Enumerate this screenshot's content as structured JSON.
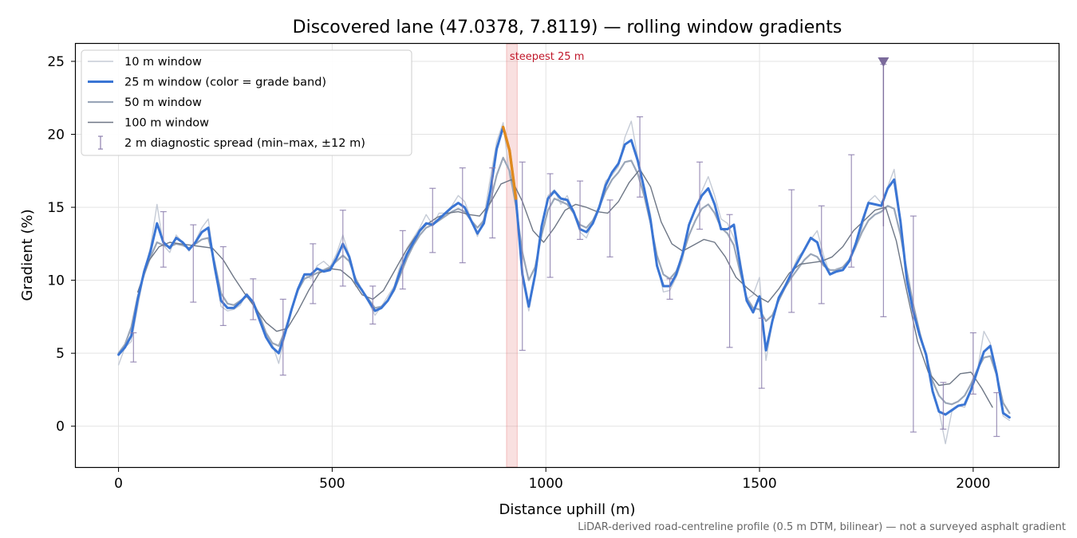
{
  "chart_data": {
    "type": "line",
    "title": "Discovered lane (47.0378, 7.8119) — rolling window gradients",
    "xlabel": "Distance uphill (m)",
    "ylabel": "Gradient (%)",
    "xlim": [
      -100,
      2200
    ],
    "ylim": [
      -2.8,
      26.2
    ],
    "xticks": [
      0,
      500,
      1000,
      1500,
      2000
    ],
    "yticks": [
      0,
      5,
      10,
      15,
      20,
      25
    ],
    "grid": true,
    "legend_position": "top-left",
    "footnote": "LiDAR-derived road-centreline profile (0.5 m DTM, bilinear) — not a surveyed asphalt gradient",
    "highlight": {
      "label": "steepest 25 m",
      "x_start": 908,
      "x_end": 933,
      "color": "#e57373"
    },
    "marker": {
      "x": 1790,
      "y": 25,
      "color": "#7b6a9b"
    },
    "series": [
      {
        "name": "10 m window",
        "color": "#c5cbd6",
        "x": [
          0,
          15,
          30,
          45,
          60,
          75,
          90,
          105,
          120,
          135,
          150,
          165,
          180,
          195,
          210,
          225,
          240,
          255,
          270,
          285,
          300,
          315,
          330,
          345,
          360,
          375,
          390,
          405,
          420,
          435,
          450,
          465,
          480,
          495,
          510,
          525,
          540,
          555,
          570,
          585,
          600,
          615,
          630,
          645,
          660,
          675,
          690,
          705,
          720,
          735,
          750,
          765,
          780,
          795,
          810,
          825,
          840,
          855,
          870,
          885,
          900,
          915,
          930,
          945,
          960,
          975,
          990,
          1005,
          1020,
          1035,
          1050,
          1065,
          1080,
          1095,
          1110,
          1125,
          1140,
          1155,
          1170,
          1185,
          1200,
          1215,
          1230,
          1245,
          1260,
          1275,
          1290,
          1305,
          1320,
          1335,
          1350,
          1365,
          1380,
          1395,
          1410,
          1425,
          1440,
          1455,
          1470,
          1485,
          1500,
          1515,
          1530,
          1545,
          1560,
          1575,
          1590,
          1605,
          1620,
          1635,
          1650,
          1665,
          1680,
          1695,
          1710,
          1725,
          1740,
          1755,
          1770,
          1785,
          1800,
          1815,
          1830,
          1845,
          1860,
          1875,
          1890,
          1905,
          1920,
          1935,
          1950,
          1965,
          1980,
          1995,
          2010,
          2025,
          2040,
          2055,
          2070,
          2085
        ],
        "y": [
          4.2,
          5.4,
          5.8,
          8.2,
          10.5,
          12.3,
          15.2,
          12.4,
          11.9,
          13.1,
          12.6,
          12.0,
          12.7,
          13.6,
          14.2,
          10.8,
          8.2,
          7.9,
          8.0,
          8.3,
          9.1,
          8.4,
          7.2,
          6.3,
          5.6,
          4.3,
          6.3,
          8.1,
          9.4,
          10.4,
          10.1,
          11.0,
          11.3,
          10.9,
          11.8,
          13.1,
          11.7,
          9.6,
          9.4,
          8.5,
          7.6,
          8.2,
          8.9,
          9.6,
          11.1,
          12.2,
          12.9,
          13.6,
          14.5,
          13.8,
          14.6,
          14.6,
          15.1,
          15.8,
          15.4,
          14.2,
          13.0,
          14.3,
          17.0,
          19.5,
          20.8,
          17.1,
          15.4,
          10.1,
          7.9,
          10.3,
          13.8,
          15.8,
          16.2,
          15.2,
          15.8,
          14.6,
          13.3,
          12.9,
          14.0,
          15.2,
          16.8,
          17.2,
          17.8,
          19.8,
          20.9,
          18.4,
          16.3,
          14.5,
          11.2,
          9.2,
          9.3,
          10.2,
          11.4,
          13.9,
          14.8,
          16.1,
          17.1,
          15.8,
          14.2,
          13.9,
          12.9,
          11.4,
          8.7,
          9.0,
          10.2,
          4.5,
          7.1,
          8.8,
          9.5,
          10.6,
          11.6,
          12.1,
          12.8,
          13.4,
          11.7,
          10.4,
          10.8,
          10.9,
          11.3,
          12.2,
          13.6,
          15.4,
          15.8,
          15.3,
          16.4,
          17.6,
          14.2,
          9.7,
          7.9,
          6.1,
          4.8,
          2.5,
          1.1,
          -1.2,
          1.0,
          1.4,
          1.3,
          2.4,
          3.8,
          6.5,
          5.7,
          3.4,
          0.7,
          0.4
        ]
      },
      {
        "name": "25 m window (color = grade band)",
        "color": "#3a75d4",
        "steep_color": "#e08a1e",
        "x": [
          0,
          15,
          30,
          45,
          60,
          75,
          90,
          105,
          120,
          135,
          150,
          165,
          180,
          195,
          210,
          225,
          240,
          255,
          270,
          285,
          300,
          315,
          330,
          345,
          360,
          375,
          390,
          405,
          420,
          435,
          450,
          465,
          480,
          495,
          510,
          525,
          540,
          555,
          570,
          585,
          600,
          615,
          630,
          645,
          660,
          675,
          690,
          705,
          720,
          735,
          750,
          765,
          780,
          795,
          810,
          825,
          840,
          855,
          870,
          885,
          900,
          915,
          930,
          945,
          960,
          975,
          990,
          1005,
          1020,
          1035,
          1050,
          1065,
          1080,
          1095,
          1110,
          1125,
          1140,
          1155,
          1170,
          1185,
          1200,
          1215,
          1230,
          1245,
          1260,
          1275,
          1290,
          1305,
          1320,
          1335,
          1350,
          1365,
          1380,
          1395,
          1410,
          1425,
          1440,
          1455,
          1470,
          1485,
          1500,
          1515,
          1530,
          1545,
          1560,
          1575,
          1590,
          1605,
          1620,
          1635,
          1650,
          1665,
          1680,
          1695,
          1710,
          1725,
          1740,
          1755,
          1770,
          1785,
          1800,
          1815,
          1830,
          1845,
          1860,
          1875,
          1890,
          1905,
          1920,
          1935,
          1950,
          1965,
          1980,
          1995,
          2010,
          2025,
          2040,
          2055,
          2070,
          2085
        ],
        "y": [
          4.9,
          5.4,
          6.2,
          8.7,
          10.6,
          12.0,
          13.9,
          12.6,
          12.2,
          12.9,
          12.6,
          12.1,
          12.6,
          13.3,
          13.6,
          10.9,
          8.6,
          8.1,
          8.1,
          8.5,
          9.0,
          8.5,
          7.3,
          6.1,
          5.4,
          5.0,
          6.4,
          8.0,
          9.4,
          10.4,
          10.4,
          10.8,
          10.6,
          10.7,
          11.5,
          12.5,
          11.6,
          9.9,
          9.3,
          8.6,
          7.9,
          8.1,
          8.6,
          9.4,
          10.7,
          11.8,
          12.6,
          13.4,
          13.9,
          13.8,
          14.2,
          14.6,
          15.0,
          15.3,
          15.0,
          14.1,
          13.2,
          13.9,
          16.1,
          19.0,
          20.5,
          18.9,
          15.6,
          10.4,
          8.2,
          10.4,
          13.7,
          15.6,
          16.1,
          15.6,
          15.5,
          14.7,
          13.5,
          13.3,
          13.9,
          15.0,
          16.5,
          17.4,
          18.0,
          19.3,
          19.6,
          18.2,
          16.3,
          14.1,
          11.0,
          9.6,
          9.6,
          10.4,
          11.8,
          13.8,
          14.9,
          15.8,
          16.3,
          15.2,
          13.5,
          13.5,
          13.8,
          11.0,
          8.6,
          7.8,
          8.9,
          5.2,
          7.2,
          8.8,
          9.6,
          10.5,
          11.3,
          12.1,
          12.9,
          12.6,
          11.2,
          10.4,
          10.6,
          10.7,
          11.3,
          12.5,
          14.0,
          15.3,
          15.2,
          15.1,
          16.3,
          16.9,
          14.0,
          10.0,
          7.8,
          6.2,
          4.9,
          2.4,
          1.0,
          0.8,
          1.1,
          1.4,
          1.5,
          2.5,
          3.8,
          5.1,
          5.5,
          3.6,
          0.9,
          0.6
        ]
      },
      {
        "name": "50 m window",
        "color": "#9aa6b8",
        "x": [
          0,
          15,
          30,
          45,
          60,
          75,
          90,
          105,
          120,
          135,
          150,
          165,
          180,
          195,
          210,
          225,
          240,
          255,
          270,
          285,
          300,
          315,
          330,
          345,
          360,
          375,
          390,
          405,
          420,
          435,
          450,
          465,
          480,
          495,
          510,
          525,
          540,
          555,
          570,
          585,
          600,
          615,
          630,
          645,
          660,
          675,
          690,
          705,
          720,
          735,
          750,
          765,
          780,
          795,
          810,
          825,
          840,
          855,
          870,
          885,
          900,
          915,
          930,
          945,
          960,
          975,
          990,
          1005,
          1020,
          1035,
          1050,
          1065,
          1080,
          1095,
          1110,
          1125,
          1140,
          1155,
          1170,
          1185,
          1200,
          1215,
          1230,
          1245,
          1260,
          1275,
          1290,
          1305,
          1320,
          1335,
          1350,
          1365,
          1380,
          1395,
          1410,
          1425,
          1440,
          1455,
          1470,
          1485,
          1500,
          1515,
          1530,
          1545,
          1560,
          1575,
          1590,
          1605,
          1620,
          1635,
          1650,
          1665,
          1680,
          1695,
          1710,
          1725,
          1740,
          1755,
          1770,
          1785,
          1800,
          1815,
          1830,
          1845,
          1860,
          1875,
          1890,
          1905,
          1920,
          1935,
          1950,
          1965,
          1980,
          1995,
          2010,
          2025,
          2040,
          2055,
          2070,
          2085
        ],
        "y": [
          5.0,
          5.6,
          6.8,
          8.9,
          10.4,
          11.6,
          12.6,
          12.4,
          12.3,
          12.5,
          12.4,
          12.2,
          12.5,
          12.8,
          12.9,
          11.2,
          9.1,
          8.4,
          8.3,
          8.6,
          8.9,
          8.5,
          7.6,
          6.4,
          5.7,
          5.5,
          6.6,
          8.0,
          9.3,
          10.1,
          10.3,
          10.5,
          10.7,
          10.9,
          11.3,
          11.7,
          11.3,
          10.1,
          9.3,
          8.7,
          8.1,
          8.2,
          8.6,
          9.3,
          10.4,
          11.5,
          12.4,
          13.1,
          13.6,
          13.8,
          14.1,
          14.4,
          14.7,
          14.9,
          14.7,
          14.1,
          13.6,
          14.1,
          15.4,
          17.2,
          18.4,
          17.5,
          15.1,
          11.9,
          10.0,
          10.9,
          13.1,
          14.8,
          15.6,
          15.4,
          15.2,
          14.6,
          13.8,
          13.6,
          14.1,
          15.0,
          16.1,
          16.9,
          17.4,
          18.1,
          18.2,
          17.3,
          15.8,
          13.9,
          11.7,
          10.4,
          10.1,
          10.6,
          11.7,
          13.1,
          14.1,
          14.9,
          15.2,
          14.6,
          13.6,
          13.2,
          12.4,
          10.5,
          8.8,
          8.1,
          8.0,
          7.2,
          7.6,
          8.6,
          9.5,
          10.2,
          10.8,
          11.4,
          11.8,
          11.6,
          11.0,
          10.7,
          10.7,
          10.9,
          11.4,
          12.3,
          13.3,
          14.1,
          14.5,
          14.7,
          15.1,
          14.9,
          13.1,
          10.6,
          8.3,
          6.4,
          4.8,
          3.1,
          2.1,
          1.6,
          1.5,
          1.7,
          2.1,
          2.9,
          3.9,
          4.7,
          4.8,
          3.5,
          1.6,
          0.9
        ]
      },
      {
        "name": "100 m window",
        "color": "#6e7786",
        "x": [
          45,
          70,
          95,
          120,
          145,
          170,
          195,
          220,
          245,
          270,
          295,
          320,
          345,
          370,
          395,
          420,
          445,
          470,
          495,
          520,
          545,
          570,
          595,
          620,
          645,
          670,
          695,
          720,
          745,
          770,
          795,
          820,
          845,
          870,
          895,
          920,
          945,
          970,
          995,
          1020,
          1045,
          1070,
          1095,
          1120,
          1145,
          1170,
          1195,
          1220,
          1245,
          1270,
          1295,
          1320,
          1345,
          1370,
          1395,
          1420,
          1445,
          1470,
          1495,
          1520,
          1545,
          1570,
          1595,
          1620,
          1645,
          1670,
          1695,
          1720,
          1745,
          1770,
          1795,
          1820,
          1845,
          1870,
          1895,
          1920,
          1945,
          1970,
          1995,
          2020,
          2045
        ],
        "y": [
          9.2,
          11.3,
          12.3,
          12.6,
          12.5,
          12.4,
          12.3,
          12.2,
          11.4,
          10.2,
          9.1,
          8.1,
          7.1,
          6.5,
          6.7,
          7.9,
          9.3,
          10.5,
          10.8,
          10.7,
          10.1,
          9.0,
          8.7,
          9.3,
          10.6,
          11.9,
          13.0,
          13.8,
          14.3,
          14.6,
          14.7,
          14.5,
          14.4,
          15.3,
          16.6,
          16.9,
          15.4,
          13.4,
          12.6,
          13.6,
          14.8,
          15.2,
          15.0,
          14.7,
          14.6,
          15.4,
          16.7,
          17.6,
          16.4,
          14.0,
          12.5,
          12.0,
          12.4,
          12.8,
          12.6,
          11.6,
          10.2,
          9.5,
          8.9,
          8.5,
          9.4,
          10.5,
          11.1,
          11.2,
          11.3,
          11.6,
          12.3,
          13.4,
          14.1,
          14.8,
          15.0,
          12.7,
          9.2,
          5.8,
          3.7,
          2.8,
          2.9,
          3.6,
          3.7,
          2.6,
          1.3
        ]
      }
    ],
    "diagnostic_spread": {
      "name": "2 m diagnostic spread (min–max, ±12 m)",
      "color": "#8d7fae",
      "x": [
        35,
        105,
        175,
        245,
        315,
        385,
        455,
        525,
        595,
        665,
        735,
        805,
        875,
        945,
        1010,
        1080,
        1150,
        1220,
        1290,
        1360,
        1430,
        1505,
        1575,
        1645,
        1715,
        1790,
        1860,
        1930,
        2000,
        2055
      ],
      "y_min": [
        4.4,
        10.9,
        8.5,
        6.9,
        7.3,
        3.5,
        8.4,
        9.6,
        7.0,
        9.4,
        11.9,
        11.2,
        12.9,
        5.2,
        10.2,
        12.8,
        11.6,
        15.7,
        8.7,
        13.5,
        5.4,
        2.6,
        7.8,
        8.4,
        10.9,
        7.5,
        -0.4,
        -0.2,
        2.2,
        -0.7
      ],
      "y_max": [
        6.4,
        14.7,
        13.8,
        12.3,
        10.1,
        8.7,
        12.5,
        14.8,
        9.6,
        13.4,
        16.3,
        17.7,
        17.7,
        18.1,
        17.3,
        16.8,
        15.5,
        21.2,
        10.1,
        18.1,
        14.5,
        7.4,
        16.2,
        15.1,
        18.6,
        24.8,
        14.4,
        3.0,
        6.4,
        2.3
      ]
    }
  }
}
